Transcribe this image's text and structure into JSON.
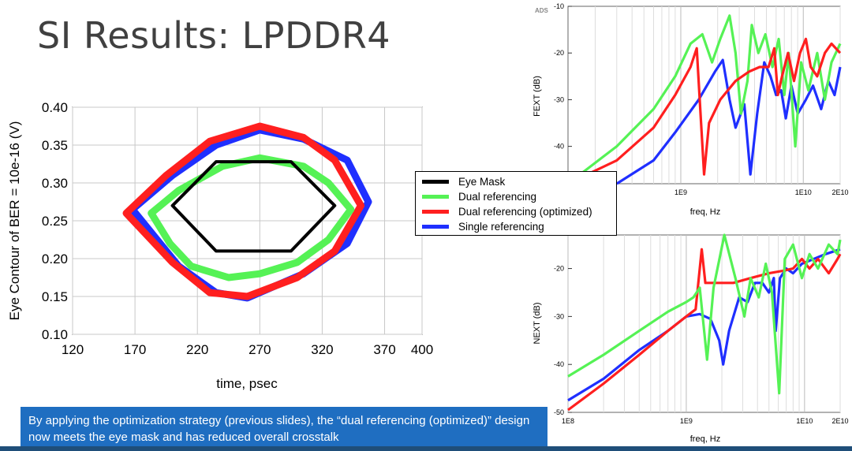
{
  "slide": {
    "title": "SI Results: LPDDR4",
    "caption": "By applying the optimization strategy (previous slides), the “dual referencing (optimized)” design now meets the eye mask and has reduced overall crosstalk"
  },
  "legend": {
    "items": [
      {
        "label": "Eye Mask",
        "color": "#000000"
      },
      {
        "label": "Dual referencing",
        "color": "#55f255"
      },
      {
        "label": "Dual referencing (optimized)",
        "color": "#ff1f1f"
      },
      {
        "label": "Single referencing",
        "color": "#1f2fff"
      }
    ]
  },
  "chart_data": [
    {
      "type": "line",
      "name": "eye-contour",
      "xlabel": "time, psec",
      "ylabel": "Eye Contour of BER = 10e-16 (V)",
      "xlim": [
        120,
        400
      ],
      "ylim": [
        0.1,
        0.4
      ],
      "xticks": [
        "120",
        "170",
        "220",
        "270",
        "320",
        "370",
        "400"
      ],
      "yticks": [
        "0.40",
        "0.35",
        "0.30",
        "0.25",
        "0.20",
        "0.15",
        "0.10"
      ],
      "series": [
        {
          "name": "Eye Mask",
          "color": "#000000",
          "points": [
            [
              200,
              0.27
            ],
            [
              235,
              0.328
            ],
            [
              295,
              0.328
            ],
            [
              330,
              0.27
            ],
            [
              295,
              0.21
            ],
            [
              235,
              0.21
            ],
            [
              200,
              0.27
            ]
          ]
        },
        {
          "name": "Dual referencing",
          "color": "#55f255",
          "points": [
            [
              183,
              0.26
            ],
            [
              205,
              0.29
            ],
            [
              240,
              0.322
            ],
            [
              270,
              0.333
            ],
            [
              305,
              0.322
            ],
            [
              325,
              0.3
            ],
            [
              343,
              0.265
            ],
            [
              325,
              0.225
            ],
            [
              300,
              0.195
            ],
            [
              270,
              0.18
            ],
            [
              245,
              0.175
            ],
            [
              215,
              0.19
            ],
            [
              198,
              0.22
            ],
            [
              183,
              0.26
            ]
          ]
        },
        {
          "name": "Dual referencing (optimized)",
          "color": "#ff1f1f",
          "points": [
            [
              163,
              0.26
            ],
            [
              195,
              0.31
            ],
            [
              230,
              0.355
            ],
            [
              270,
              0.375
            ],
            [
              305,
              0.36
            ],
            [
              330,
              0.33
            ],
            [
              351,
              0.27
            ],
            [
              330,
              0.21
            ],
            [
              300,
              0.175
            ],
            [
              260,
              0.15
            ],
            [
              230,
              0.155
            ],
            [
              200,
              0.195
            ],
            [
              163,
              0.26
            ]
          ]
        },
        {
          "name": "Single referencing",
          "color": "#1f2fff",
          "points": [
            [
              168,
              0.265
            ],
            [
              200,
              0.31
            ],
            [
              235,
              0.35
            ],
            [
              270,
              0.37
            ],
            [
              305,
              0.358
            ],
            [
              340,
              0.33
            ],
            [
              357,
              0.275
            ],
            [
              340,
              0.22
            ],
            [
              305,
              0.18
            ],
            [
              260,
              0.148
            ],
            [
              235,
              0.155
            ],
            [
              205,
              0.19
            ],
            [
              168,
              0.265
            ]
          ]
        }
      ]
    },
    {
      "type": "line",
      "name": "fext",
      "ylabel": "FEXT (dB)",
      "xlabel": "freq, Hz",
      "logo": "ADS",
      "ylim": [
        -48,
        -10
      ],
      "yticks": [
        "-10",
        "-20",
        "-30",
        "-40"
      ],
      "xticks": [
        "1E9",
        "1E10",
        "2E10"
      ]
    },
    {
      "type": "line",
      "name": "next",
      "ylabel": "NEXT (dB)",
      "xlabel": "freq, Hz",
      "logo": "ADS",
      "ylim": [
        -50,
        -13
      ],
      "yticks": [
        "-20",
        "-30",
        "-40",
        "-50"
      ],
      "xticks": [
        "1E8",
        "1E9",
        "1E10",
        "2E10"
      ]
    }
  ]
}
